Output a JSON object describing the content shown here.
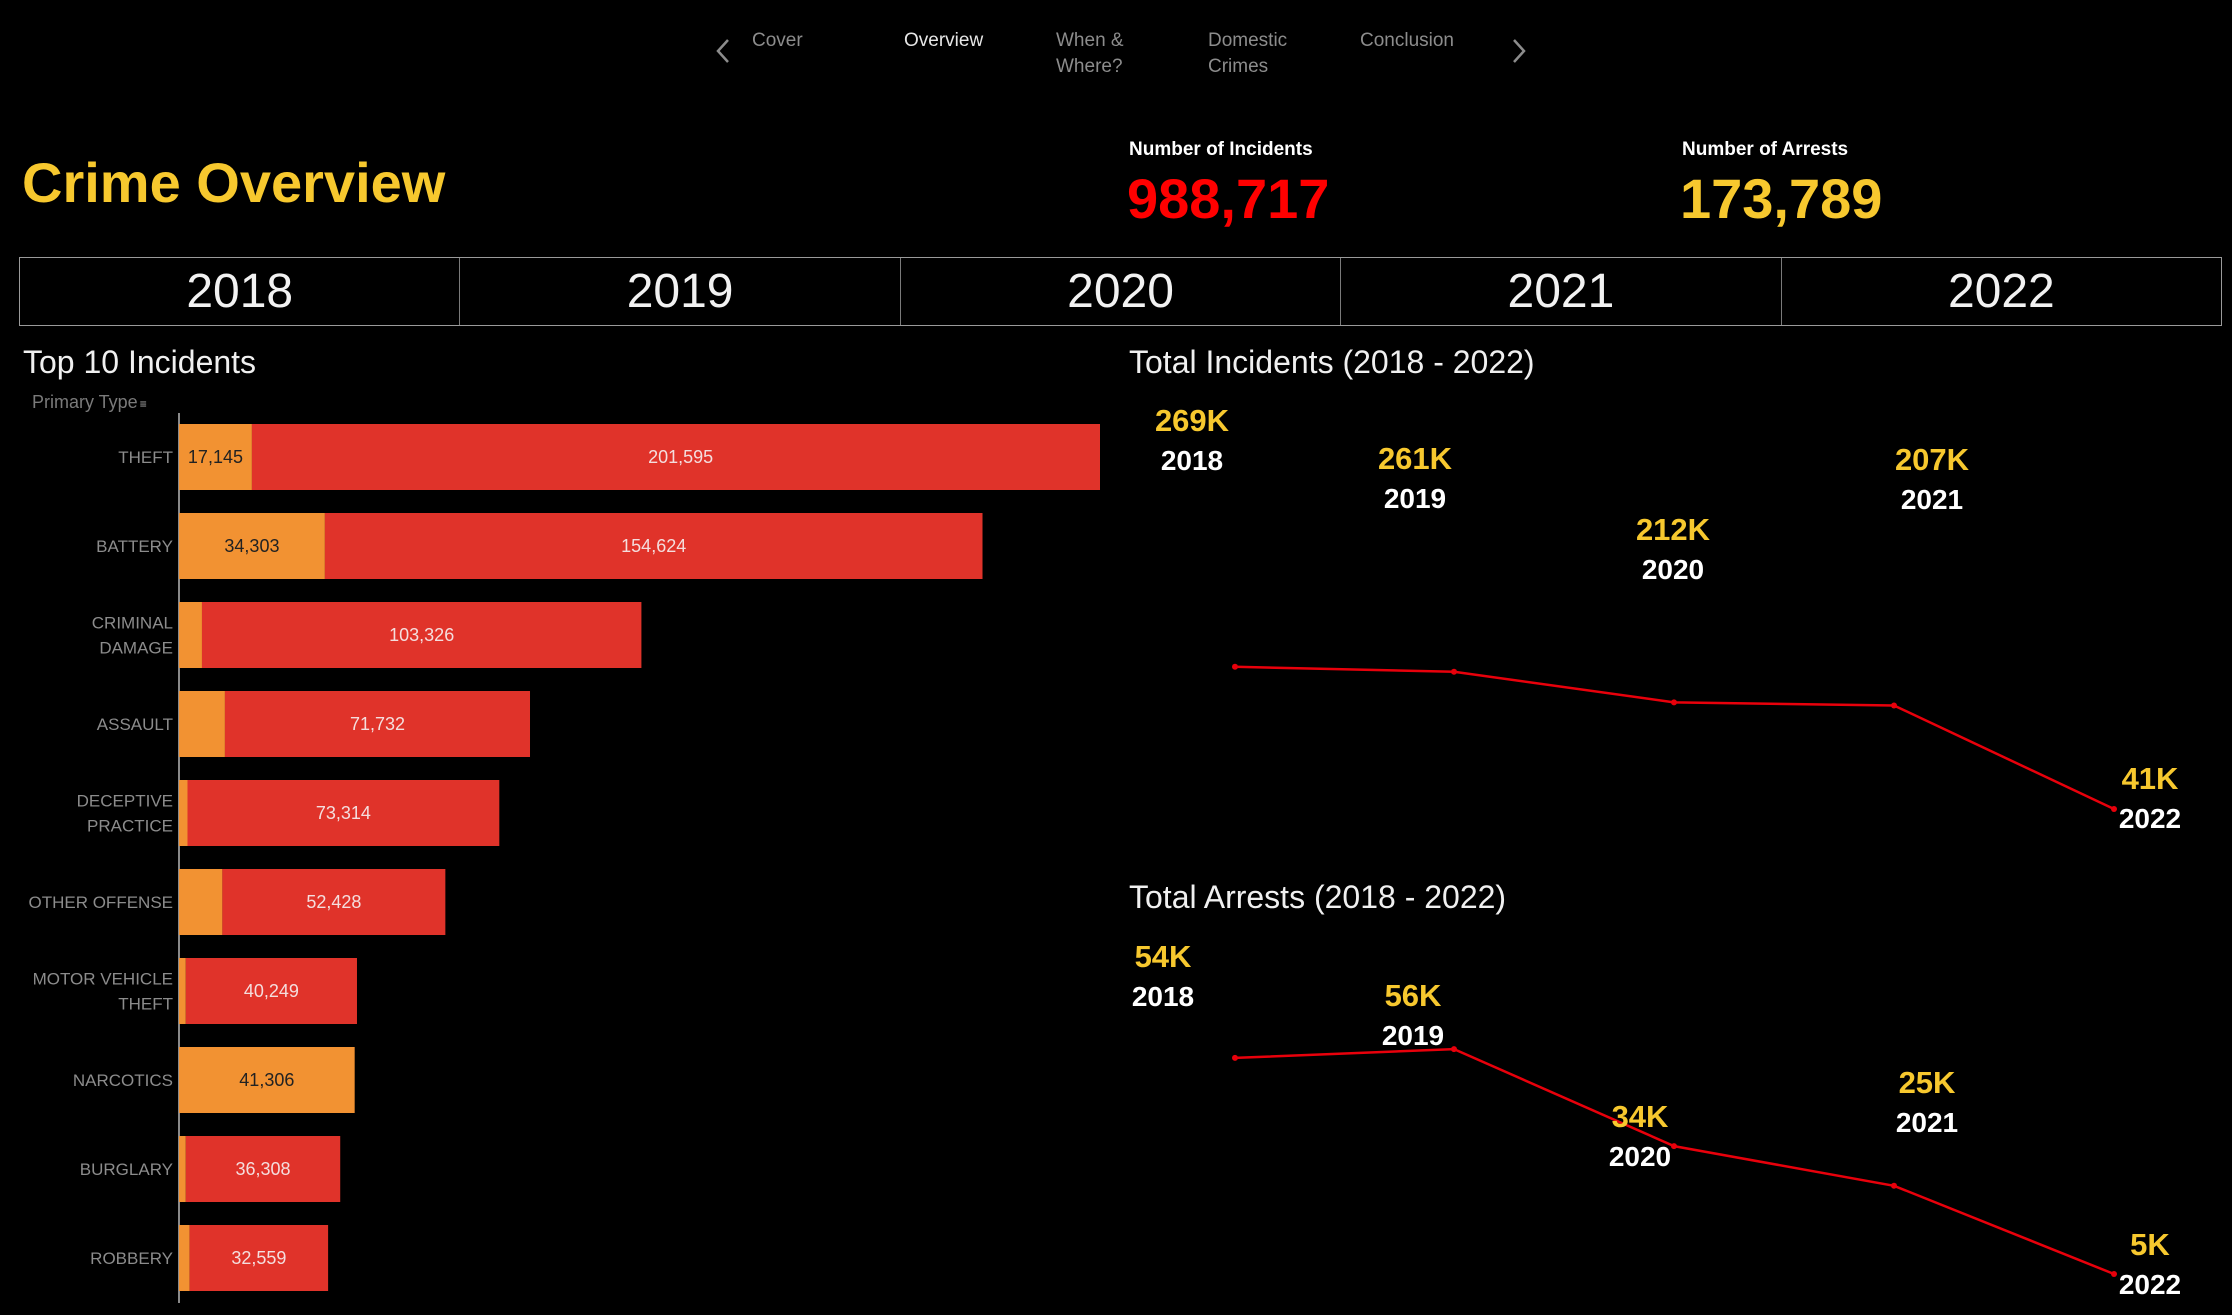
{
  "nav": {
    "items": [
      {
        "label": "Cover",
        "active": false
      },
      {
        "label": "Overview",
        "active": true
      },
      {
        "label": "When &\nWhere?",
        "active": false
      },
      {
        "label": "Domestic\nCrimes",
        "active": false
      },
      {
        "label": "Conclusion",
        "active": false
      }
    ],
    "prev_icon": "chevron-left-icon",
    "next_icon": "chevron-right-icon"
  },
  "header": {
    "title": "Crime Overview",
    "incidents_label": "Number of Incidents",
    "incidents_value": "988,717",
    "arrests_label": "Number of Arrests",
    "arrests_value": "173,789"
  },
  "year_filter": [
    "2018",
    "2019",
    "2020",
    "2021",
    "2022"
  ],
  "colors": {
    "accent_yellow": "#f7c82e",
    "incident_red": "#ff0000",
    "bar_red": "#e0332a",
    "bar_orange": "#f29232",
    "line_red": "#e8000b"
  },
  "chart_data": [
    {
      "type": "bar",
      "title": "Top 10 Incidents",
      "ylabel": "Primary Type",
      "categories": [
        "THEFT",
        "BATTERY",
        "CRIMINAL\nDAMAGE",
        "ASSAULT",
        "DECEPTIVE\nPRACTICE",
        "OTHER OFFENSE",
        "MOTOR VEHICLE\nTHEFT",
        "NARCOTICS",
        "BURGLARY",
        "ROBBERY"
      ],
      "series": [
        {
          "values": [
            17145,
            34303,
            5400,
            10800,
            2000,
            10200,
            1600,
            41306,
            1600,
            2500
          ],
          "labels": [
            "17,145",
            "34,303",
            "",
            "",
            "",
            "",
            "",
            "41,306",
            "",
            ""
          ]
        },
        {
          "values": [
            201595,
            154624,
            103326,
            71732,
            73314,
            52428,
            40249,
            0,
            36308,
            32559
          ],
          "labels": [
            "201,595",
            "154,624",
            "103,326",
            "71,732",
            "73,314",
            "52,428",
            "40,249",
            "",
            "36,308",
            "32,559"
          ]
        }
      ]
    },
    {
      "type": "line",
      "title": "Total Incidents (2018 - 2022)",
      "x": [
        "2018",
        "2019",
        "2020",
        "2021",
        "2022"
      ],
      "values": [
        269,
        261,
        212,
        207,
        41
      ],
      "labels": [
        "269K",
        "261K",
        "212K",
        "207K",
        "41K"
      ]
    },
    {
      "type": "line",
      "title": "Total Arrests (2018 - 2022)",
      "x": [
        "2018",
        "2019",
        "2020",
        "2021",
        "2022"
      ],
      "values": [
        54,
        56,
        34,
        25,
        5
      ],
      "labels": [
        "54K",
        "56K",
        "34K",
        "25K",
        "5K"
      ]
    }
  ]
}
